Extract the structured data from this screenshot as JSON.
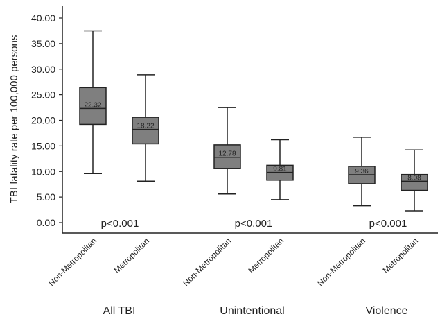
{
  "chart_data": {
    "type": "box",
    "ylabel": "TBI fatality rate per 100,000 persons",
    "ylim": [
      0,
      43
    ],
    "yticks": [
      "0.00",
      "5.00",
      "10.00",
      "15.00",
      "20.00",
      "25.00",
      "30.00",
      "35.00",
      "40.00"
    ],
    "ytick_values": [
      0,
      5,
      10,
      15,
      20,
      25,
      30,
      35,
      40
    ],
    "box_color": "#7f7f7f",
    "groups": [
      {
        "name": "All TBI",
        "p_value": "p<0.001",
        "boxes": [
          {
            "category": "Non-Metropolitan",
            "whisker_low": 9.6,
            "q1": 19.2,
            "median": 22.32,
            "median_label": "22.32",
            "q3": 26.4,
            "whisker_high": 37.5
          },
          {
            "category": "Metropolitan",
            "whisker_low": 8.1,
            "q1": 15.4,
            "median": 18.22,
            "median_label": "18.22",
            "q3": 20.6,
            "whisker_high": 28.9
          }
        ]
      },
      {
        "name": "Unintentional",
        "p_value": "p<0.001",
        "boxes": [
          {
            "category": "Non-Metropolitan",
            "whisker_low": 5.6,
            "q1": 10.6,
            "median": 12.78,
            "median_label": "12.78",
            "q3": 15.2,
            "whisker_high": 22.5
          },
          {
            "category": "Metropolitan",
            "whisker_low": 4.5,
            "q1": 8.3,
            "median": 9.81,
            "median_label": "9.81",
            "q3": 11.2,
            "whisker_high": 16.2
          }
        ]
      },
      {
        "name": "Violence",
        "p_value": "p<0.001",
        "boxes": [
          {
            "category": "Non-Metropolitan",
            "whisker_low": 3.3,
            "q1": 7.6,
            "median": 9.36,
            "median_label": "9.36",
            "q3": 11.0,
            "whisker_high": 16.7
          },
          {
            "category": "Metropolitan",
            "whisker_low": 2.3,
            "q1": 6.3,
            "median": 8.08,
            "median_label": "8.08",
            "q3": 9.4,
            "whisker_high": 14.2
          }
        ]
      }
    ]
  }
}
